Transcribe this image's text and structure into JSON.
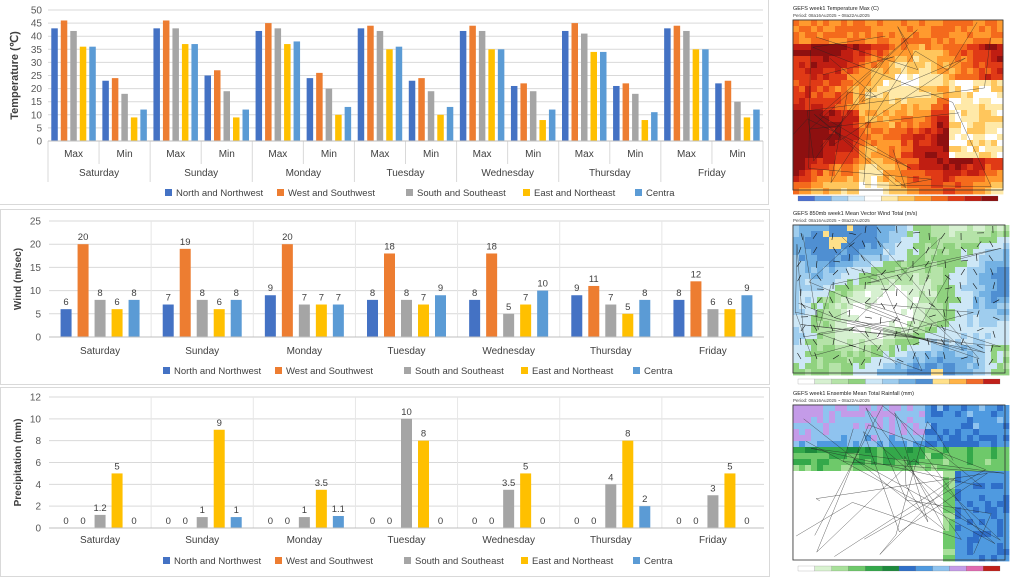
{
  "colors": {
    "North and Northwest": "#4472c4",
    "West and Southwest": "#ed7d31",
    "South and Southeast": "#a5a5a5",
    "East and Northeast": "#ffc000",
    "Centra": "#5b9bd5"
  },
  "chart_data": [
    {
      "type": "bar",
      "ylabel": "Temperature (℃)",
      "ylim": [
        0,
        50
      ],
      "yticks": [
        0,
        5,
        10,
        15,
        20,
        25,
        30,
        35,
        40,
        45,
        50
      ],
      "days": [
        "Saturday",
        "Sunday",
        "Monday",
        "Tuesday",
        "Wednesday",
        "Thursday",
        "Friday"
      ],
      "subcategories": [
        "Max",
        "Min"
      ],
      "grid": true,
      "legend": "bottom",
      "series": [
        {
          "name": "North and Northwest",
          "values": [
            [
              43,
              23
            ],
            [
              43,
              25
            ],
            [
              42,
              24
            ],
            [
              43,
              23
            ],
            [
              42,
              21
            ],
            [
              42,
              21
            ],
            [
              43,
              22
            ]
          ]
        },
        {
          "name": "West and Southwest",
          "values": [
            [
              46,
              24
            ],
            [
              46,
              27
            ],
            [
              45,
              26
            ],
            [
              44,
              24
            ],
            [
              44,
              22
            ],
            [
              45,
              22
            ],
            [
              44,
              23
            ]
          ]
        },
        {
          "name": "South and Southeast",
          "values": [
            [
              42,
              18
            ],
            [
              43,
              19
            ],
            [
              43,
              20
            ],
            [
              42,
              19
            ],
            [
              42,
              19
            ],
            [
              41,
              18
            ],
            [
              42,
              15
            ]
          ]
        },
        {
          "name": "East and Northeast",
          "values": [
            [
              36,
              9
            ],
            [
              37,
              9
            ],
            [
              37,
              10
            ],
            [
              35,
              10
            ],
            [
              35,
              8
            ],
            [
              34,
              8
            ],
            [
              35,
              9
            ]
          ]
        },
        {
          "name": "Centra",
          "values": [
            [
              36,
              12
            ],
            [
              37,
              12
            ],
            [
              38,
              13
            ],
            [
              36,
              13
            ],
            [
              35,
              12
            ],
            [
              34,
              11
            ],
            [
              35,
              12
            ]
          ]
        }
      ]
    },
    {
      "type": "bar",
      "ylabel": "Wind (m/sec)",
      "ylim": [
        0,
        25
      ],
      "yticks": [
        0,
        5,
        10,
        15,
        20,
        25
      ],
      "categories": [
        "Saturday",
        "Sunday",
        "Monday",
        "Tuesday",
        "Wednesday",
        "Thursday",
        "Friday"
      ],
      "grid": true,
      "legend": "bottom",
      "series": [
        {
          "name": "North and Northwest",
          "values": [
            6,
            7,
            9,
            8,
            8,
            9,
            8
          ]
        },
        {
          "name": "West and Southwest",
          "values": [
            20,
            19,
            20,
            18,
            18,
            11,
            12
          ]
        },
        {
          "name": "South and Southeast",
          "values": [
            8,
            8,
            7,
            8,
            5,
            7,
            6
          ]
        },
        {
          "name": "East and Northeast",
          "values": [
            6,
            6,
            7,
            7,
            7,
            5,
            6
          ]
        },
        {
          "name": "Centra",
          "values": [
            8,
            8,
            7,
            9,
            10,
            8,
            9
          ]
        }
      ]
    },
    {
      "type": "bar",
      "ylabel": "Precipitation (mm)",
      "ylim": [
        0,
        12
      ],
      "yticks": [
        0,
        2,
        4,
        6,
        8,
        10,
        12
      ],
      "categories": [
        "Saturday",
        "Sunday",
        "Monday",
        "Tuesday",
        "Wednesday",
        "Thursday",
        "Friday"
      ],
      "grid": true,
      "legend": "bottom",
      "series": [
        {
          "name": "North and Northwest",
          "values": [
            0,
            0,
            0,
            0,
            0,
            0,
            0
          ]
        },
        {
          "name": "West and Southwest",
          "values": [
            0,
            0,
            0,
            0,
            0,
            0,
            0
          ]
        },
        {
          "name": "South and Southeast",
          "values": [
            1.2,
            1,
            1,
            10,
            3.5,
            4,
            3
          ]
        },
        {
          "name": "East and Northeast",
          "values": [
            5,
            9,
            3.5,
            8,
            5,
            8,
            5
          ]
        },
        {
          "name": "Centra",
          "values": [
            0,
            1,
            1.1,
            0,
            0,
            2,
            0
          ]
        }
      ]
    }
  ],
  "maps": [
    {
      "title": "GEFS week1 Temperature Max (C)",
      "period": "Period: 08a16Au2025 ~ 08a22Au2025",
      "palette": [
        "#4b6fd1",
        "#6fa6e6",
        "#a8d0f0",
        "#d8ecf8",
        "#ffffff",
        "#ffe9a8",
        "#ffc65c",
        "#ff9a2e",
        "#f46a1c",
        "#e03a16",
        "#c01e12",
        "#8e1010"
      ]
    },
    {
      "title": "GEFS 850mb week1 Mean Vector Wind Total (m/s)",
      "period": "Period: 08a16Au2025 ~ 08a22Au2025",
      "palette": [
        "#ffffff",
        "#d6f0d0",
        "#b5e3a8",
        "#90d27f",
        "#cde7f6",
        "#9fcdee",
        "#73b1e3",
        "#4f8fd2",
        "#ffe08a",
        "#ffb347",
        "#f06a2a",
        "#c0201a"
      ]
    },
    {
      "title": "GEFS week1 Ensemble Mean Total Rainfall (mm)",
      "period": "Period: 08a16Au2025 ~ 08a22Au2025",
      "palette": [
        "#ffffff",
        "#d9f2d0",
        "#a8e09a",
        "#6ec96a",
        "#34a84a",
        "#1d8a3c",
        "#2f6fc9",
        "#4f9ae0",
        "#8fc3ef",
        "#c49be8",
        "#e06ab0",
        "#c0201a"
      ]
    }
  ]
}
